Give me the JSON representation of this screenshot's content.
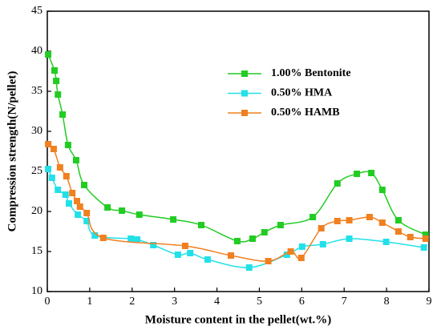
{
  "chart_data": {
    "type": "line",
    "x_label": "Moisture content in the pellet(wt.%)",
    "y_label": "Compression strength(N/pellet)",
    "xlim": [
      0,
      9
    ],
    "xticks": [
      0,
      1,
      2,
      3,
      4,
      5,
      6,
      7,
      8,
      9
    ],
    "ylim": [
      10,
      45
    ],
    "yticks": [
      10,
      15,
      20,
      25,
      30,
      35,
      40,
      45
    ],
    "legend": "upper right",
    "series": [
      {
        "name": "1.00% Bentonite",
        "color": "#22cc22",
        "x": [
          0.02,
          0.17,
          0.21,
          0.25,
          0.36,
          0.49,
          0.68,
          0.87,
          1.42,
          1.76,
          2.17,
          2.97,
          3.63,
          4.48,
          4.84,
          5.12,
          5.5,
          6.26,
          6.84,
          7.3,
          7.64,
          7.9,
          8.28,
          8.92
        ],
        "values": [
          39.6,
          37.6,
          36.3,
          34.6,
          32.1,
          28.3,
          26.4,
          23.3,
          20.5,
          20.1,
          19.6,
          19.0,
          18.3,
          16.3,
          16.6,
          17.4,
          18.3,
          19.3,
          23.5,
          24.7,
          24.8,
          22.7,
          18.9,
          17.1
        ]
      },
      {
        "name": "0.50% HMA",
        "color": "#22e0e8",
        "x": [
          0.02,
          0.11,
          0.25,
          0.43,
          0.51,
          0.72,
          0.93,
          1.12,
          1.97,
          2.12,
          2.5,
          3.08,
          3.37,
          3.78,
          4.76,
          5.65,
          6.01,
          6.5,
          7.12,
          7.99,
          8.88
        ],
        "values": [
          25.3,
          24.2,
          22.7,
          22.1,
          21.0,
          19.6,
          18.8,
          17.0,
          16.6,
          16.5,
          15.8,
          14.6,
          14.8,
          14.0,
          13.0,
          14.6,
          15.6,
          15.9,
          16.6,
          16.2,
          15.5
        ]
      },
      {
        "name": "0.50% HAMB",
        "color": "#f08020",
        "x": [
          0.02,
          0.15,
          0.3,
          0.45,
          0.59,
          0.7,
          0.77,
          0.93,
          1.32,
          3.25,
          4.33,
          5.21,
          5.74,
          5.99,
          6.46,
          6.84,
          7.12,
          7.6,
          7.9,
          8.28,
          8.56,
          8.92
        ],
        "values": [
          28.4,
          27.8,
          25.5,
          24.4,
          22.3,
          21.3,
          20.6,
          19.8,
          16.7,
          15.7,
          14.5,
          13.8,
          15.0,
          14.2,
          17.9,
          18.8,
          18.9,
          19.3,
          18.6,
          17.5,
          16.8,
          16.6
        ]
      }
    ]
  }
}
